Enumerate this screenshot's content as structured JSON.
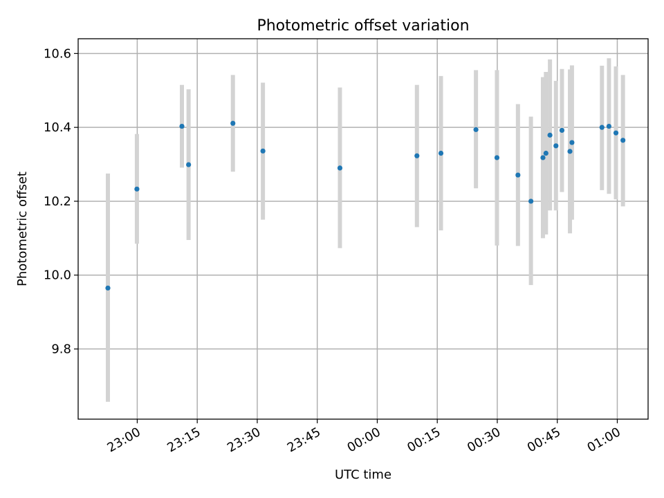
{
  "chart_data": {
    "type": "scatter",
    "title": "Photometric offset variation",
    "xlabel": "UTC time",
    "ylabel": "Photometric offset",
    "x_ticks": [
      {
        "time": "23:00",
        "label": "23:00"
      },
      {
        "time": "23:15",
        "label": "23:15"
      },
      {
        "time": "23:30",
        "label": "23:30"
      },
      {
        "time": "23:45",
        "label": "23:45"
      },
      {
        "time": "00:00",
        "label": "00:00"
      },
      {
        "time": "00:15",
        "label": "00:15"
      },
      {
        "time": "00:30",
        "label": "00:30"
      },
      {
        "time": "00:45",
        "label": "00:45"
      },
      {
        "time": "01:00",
        "label": "01:00"
      }
    ],
    "y_ticks": [
      {
        "value": 9.8,
        "label": "9.8"
      },
      {
        "value": 10.0,
        "label": "10.0"
      },
      {
        "value": 10.2,
        "label": "10.2"
      },
      {
        "value": 10.4,
        "label": "10.4"
      },
      {
        "value": 10.6,
        "label": "10.6"
      }
    ],
    "xlim": [
      "22:45:14",
      "01:07:42"
    ],
    "ylim": [
      9.61,
      10.64
    ],
    "grid": true,
    "point_color": "#1f77b4",
    "errorbar_color": "#d3d3d3",
    "points": [
      {
        "time": "22:52:40",
        "y": 9.965,
        "err_low": 9.657,
        "err_high": 10.275
      },
      {
        "time": "22:59:55",
        "y": 10.233,
        "err_low": 10.085,
        "err_high": 10.382
      },
      {
        "time": "23:11:10",
        "y": 10.403,
        "err_low": 10.291,
        "err_high": 10.515
      },
      {
        "time": "23:12:50",
        "y": 10.299,
        "err_low": 10.095,
        "err_high": 10.503
      },
      {
        "time": "23:23:55",
        "y": 10.411,
        "err_low": 10.28,
        "err_high": 10.542
      },
      {
        "time": "23:31:25",
        "y": 10.336,
        "err_low": 10.15,
        "err_high": 10.521
      },
      {
        "time": "23:50:40",
        "y": 10.29,
        "err_low": 10.073,
        "err_high": 10.508
      },
      {
        "time": "00:09:55",
        "y": 10.323,
        "err_low": 10.13,
        "err_high": 10.515
      },
      {
        "time": "00:15:55",
        "y": 10.33,
        "err_low": 10.121,
        "err_high": 10.539
      },
      {
        "time": "00:24:40",
        "y": 10.394,
        "err_low": 10.235,
        "err_high": 10.555
      },
      {
        "time": "00:29:55",
        "y": 10.318,
        "err_low": 10.08,
        "err_high": 10.555
      },
      {
        "time": "00:35:10",
        "y": 10.271,
        "err_low": 10.079,
        "err_high": 10.463
      },
      {
        "time": "00:38:25",
        "y": 10.2,
        "err_low": 9.973,
        "err_high": 10.429
      },
      {
        "time": "00:41:25",
        "y": 10.318,
        "err_low": 10.1,
        "err_high": 10.536
      },
      {
        "time": "00:42:10",
        "y": 10.33,
        "err_low": 10.11,
        "err_high": 10.55
      },
      {
        "time": "00:43:10",
        "y": 10.379,
        "err_low": 10.175,
        "err_high": 10.584
      },
      {
        "time": "00:44:40",
        "y": 10.35,
        "err_low": 10.175,
        "err_high": 10.526
      },
      {
        "time": "00:46:10",
        "y": 10.392,
        "err_low": 10.225,
        "err_high": 10.558
      },
      {
        "time": "00:48:10",
        "y": 10.335,
        "err_low": 10.113,
        "err_high": 10.557
      },
      {
        "time": "00:48:40",
        "y": 10.359,
        "err_low": 10.15,
        "err_high": 10.568
      },
      {
        "time": "00:56:10",
        "y": 10.4,
        "err_low": 10.23,
        "err_high": 10.567
      },
      {
        "time": "00:57:55",
        "y": 10.403,
        "err_low": 10.22,
        "err_high": 10.587
      },
      {
        "time": "00:59:40",
        "y": 10.385,
        "err_low": 10.205,
        "err_high": 10.565
      },
      {
        "time": "01:01:25",
        "y": 10.365,
        "err_low": 10.186,
        "err_high": 10.542
      }
    ]
  }
}
